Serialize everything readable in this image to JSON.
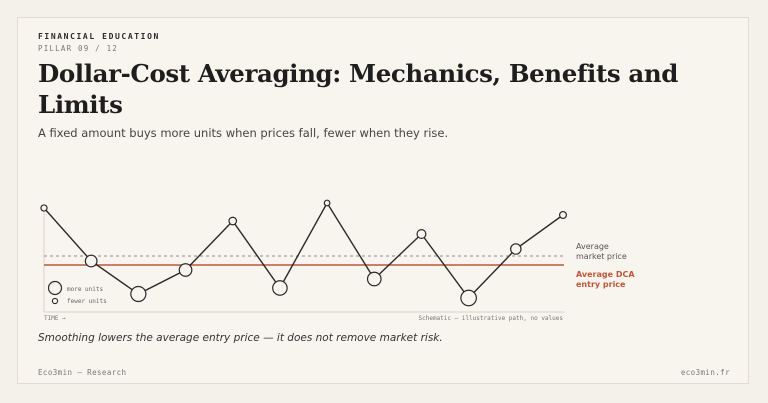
{
  "header": {
    "kicker": "FINANCIAL EDUCATION",
    "pillar": "PILLAR 09 / 12",
    "title": "Dollar-Cost Averaging: Mechanics, Benefits and Limits",
    "subtitle": "A fixed amount buys more units when prices fall, fewer when they rise."
  },
  "chart_data": {
    "type": "line",
    "price_path_relative": [
      0.95,
      0.42,
      0.09,
      0.33,
      0.82,
      0.15,
      1.0,
      0.24,
      0.69,
      0.05,
      0.54,
      0.88
    ],
    "reference_lines": [
      {
        "name": "average-market-price",
        "level_relative": 0.47,
        "label_lines": [
          "Average",
          "market price"
        ],
        "color": "#8a8a8a",
        "style": "dashed"
      },
      {
        "name": "average-dca-entry-price",
        "level_relative": 0.38,
        "label_lines": [
          "Average DCA",
          "entry price"
        ],
        "color": "#c0563a",
        "style": "solid"
      }
    ],
    "legend": [
      {
        "label": "more units",
        "marker": "large-circle"
      },
      {
        "label": "fewer units",
        "marker": "small-circle"
      }
    ],
    "x_axis_label": "TIME →",
    "note": "Schematic — illustrative path, no values",
    "colors": {
      "line": "#2a2a2a",
      "dca": "#c0563a",
      "market": "#8a8a8a"
    }
  },
  "caption": "Smoothing lowers the average entry price — it does not remove market risk.",
  "footer": {
    "left": "Eco3min — Research",
    "right": "eco3min.fr"
  }
}
